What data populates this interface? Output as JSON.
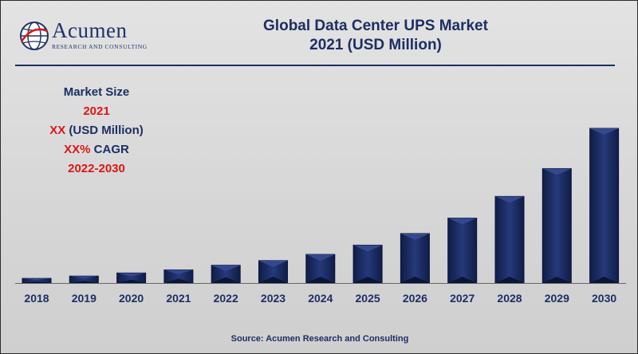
{
  "logo": {
    "name": "Acumen",
    "tagline": "RESEARCH AND CONSULTING",
    "icon": "globe-icon"
  },
  "title_line1": "Global Data Center UPS Market",
  "title_line2": "2021 (USD Million)",
  "info": {
    "heading": "Market Size",
    "year": "2021",
    "value_prefix": "XX",
    "value_suffix": " (USD Million)",
    "cagr_prefix": "XX%",
    "cagr_suffix": " CAGR",
    "period": "2022-2030"
  },
  "source": "Source: Acumen Research and Consulting",
  "colors": {
    "bar": "#15265a",
    "title": "#1c2f63",
    "accent": "#e01414"
  },
  "chart_data": {
    "type": "bar",
    "title": "Global Data Center UPS Market 2021 (USD Million)",
    "xlabel": "",
    "ylabel": "",
    "categories": [
      "2018",
      "2019",
      "2020",
      "2021",
      "2022",
      "2023",
      "2024",
      "2025",
      "2026",
      "2027",
      "2028",
      "2029",
      "2030"
    ],
    "values": [
      3,
      4.5,
      6.5,
      8.5,
      11.5,
      14.5,
      18.5,
      24.5,
      32,
      42,
      56,
      74,
      100
    ],
    "ylim": [
      0,
      100
    ],
    "grid": false,
    "legend": "none"
  }
}
